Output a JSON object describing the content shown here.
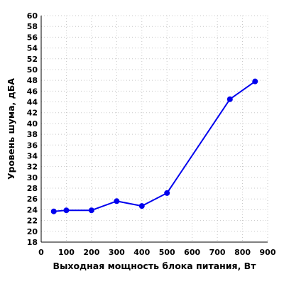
{
  "colors": {
    "series": "#0000ee",
    "grid": "#c8c8c8",
    "axis": "#000000"
  },
  "chart_data": {
    "type": "line",
    "xlabel": "Выходная мощность блока питания, Вт",
    "ylabel": "Уровень шума, дБА",
    "xlim": [
      0,
      900
    ],
    "ylim": [
      18,
      60
    ],
    "x_ticks": [
      0,
      100,
      200,
      300,
      400,
      500,
      600,
      700,
      800,
      900
    ],
    "y_ticks": [
      18,
      20,
      22,
      24,
      26,
      28,
      30,
      32,
      34,
      36,
      38,
      40,
      42,
      44,
      46,
      48,
      50,
      52,
      54,
      56,
      58,
      60
    ],
    "grid": true,
    "series": [
      {
        "x": [
          50,
          100,
          200,
          300,
          400,
          500,
          750,
          850
        ],
        "y": [
          23.7,
          23.9,
          23.9,
          25.6,
          24.7,
          27.1,
          44.5,
          47.8
        ]
      }
    ]
  }
}
